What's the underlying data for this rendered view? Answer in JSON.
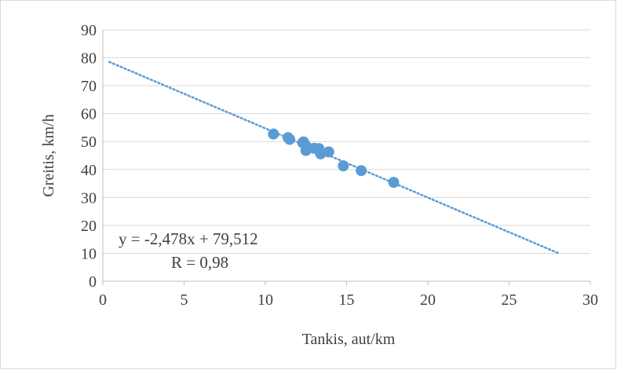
{
  "chart_data": {
    "type": "scatter",
    "xlabel": "Tankis, aut/km",
    "ylabel": "Greitis, km/h",
    "xlim": [
      0,
      30
    ],
    "ylim": [
      0,
      90
    ],
    "x_ticks": [
      0,
      5,
      10,
      15,
      20,
      25,
      30
    ],
    "y_ticks": [
      0,
      10,
      20,
      30,
      40,
      50,
      60,
      70,
      80,
      90
    ],
    "grid": "horizontal",
    "legend": "none",
    "series": [
      {
        "color": "#5b9bd5",
        "points": [
          {
            "x": 10.5,
            "y": 52.7
          },
          {
            "x": 11.4,
            "y": 51.4
          },
          {
            "x": 11.5,
            "y": 50.8
          },
          {
            "x": 12.3,
            "y": 49.6
          },
          {
            "x": 12.35,
            "y": 49.9
          },
          {
            "x": 12.5,
            "y": 48.5
          },
          {
            "x": 12.5,
            "y": 46.8
          },
          {
            "x": 13.0,
            "y": 47.6
          },
          {
            "x": 13.3,
            "y": 47.5
          },
          {
            "x": 13.4,
            "y": 45.6
          },
          {
            "x": 13.9,
            "y": 46.3
          },
          {
            "x": 14.8,
            "y": 41.3
          },
          {
            "x": 15.9,
            "y": 39.6
          },
          {
            "x": 17.9,
            "y": 35.4
          }
        ]
      }
    ],
    "trendline": {
      "color": "#5b9bd5",
      "style": "dotted",
      "slope": -2.478,
      "intercept": 79.512,
      "x_range": [
        0.4,
        28
      ]
    },
    "annotations": {
      "equation": "y = -2,478x + 79,512",
      "r_value": "R = 0,98"
    }
  }
}
